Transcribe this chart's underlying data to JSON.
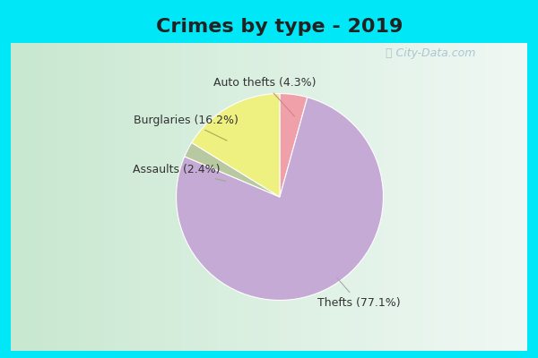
{
  "title": "Crimes by type - 2019",
  "slices": [
    {
      "label": "Thefts",
      "pct": 77.1,
      "color": "#c4aad4"
    },
    {
      "label": "Auto thefts",
      "pct": 4.3,
      "color": "#f0a0a8"
    },
    {
      "label": "Burglaries",
      "pct": 16.2,
      "color": "#eef080"
    },
    {
      "label": "Assaults",
      "pct": 2.4,
      "color": "#b8c8a0"
    }
  ],
  "title_fontsize": 16,
  "title_color": "#222222",
  "label_fontsize": 9,
  "label_color": "#333333",
  "bg_outer": "#00e8f8",
  "bg_inner_left": "#c8e8d0",
  "bg_inner_right": "#e8f4f0",
  "watermark": "  City-Data.com"
}
